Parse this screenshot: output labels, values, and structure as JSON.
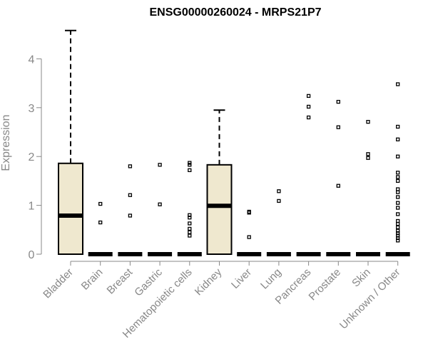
{
  "chart_data": {
    "type": "boxplot",
    "title": "ENSG00000260024 - MRPS21P7",
    "ylabel": "Expression",
    "xlabel": "",
    "ylim": [
      0,
      4.6
    ],
    "yticks": [
      0,
      1,
      2,
      3,
      4
    ],
    "grid": false,
    "box_color": "#efe8cf",
    "categories": [
      "Bladder",
      "Brain",
      "Breast",
      "Gastric",
      "Hematopoietic cells",
      "Kidney",
      "Liver",
      "Lung",
      "Pancreas",
      "Prostate",
      "Skin",
      "Unknown / Other"
    ],
    "boxes": [
      {
        "q1": 0,
        "median": 0.79,
        "q3": 1.86,
        "whisker_low": 0,
        "whisker_high": 4.58,
        "outliers": []
      },
      {
        "q1": 0,
        "median": 0,
        "q3": 0,
        "whisker_low": 0,
        "whisker_high": 0,
        "outliers": [
          0.65,
          1.03
        ]
      },
      {
        "q1": 0,
        "median": 0,
        "q3": 0,
        "whisker_low": 0,
        "whisker_high": 0,
        "outliers": [
          0.79,
          1.21,
          1.8
        ]
      },
      {
        "q1": 0,
        "median": 0,
        "q3": 0,
        "whisker_low": 0,
        "whisker_high": 0,
        "outliers": [
          1.02,
          1.83
        ]
      },
      {
        "q1": 0,
        "median": 0,
        "q3": 0,
        "whisker_low": 0,
        "whisker_high": 0,
        "outliers": [
          0.38,
          0.45,
          0.52,
          0.63,
          0.75,
          0.8,
          1.72,
          1.83,
          1.87
        ]
      },
      {
        "q1": 0,
        "median": 0.99,
        "q3": 1.83,
        "whisker_low": 0,
        "whisker_high": 2.95,
        "outliers": []
      },
      {
        "q1": 0,
        "median": 0,
        "q3": 0,
        "whisker_low": 0,
        "whisker_high": 0,
        "outliers": [
          0.35,
          0.85,
          0.87
        ]
      },
      {
        "q1": 0,
        "median": 0,
        "q3": 0,
        "whisker_low": 0,
        "whisker_high": 0,
        "outliers": [
          1.09,
          1.29
        ]
      },
      {
        "q1": 0,
        "median": 0,
        "q3": 0,
        "whisker_low": 0,
        "whisker_high": 0,
        "outliers": [
          2.8,
          3.02,
          3.24
        ]
      },
      {
        "q1": 0,
        "median": 0,
        "q3": 0,
        "whisker_low": 0,
        "whisker_high": 0,
        "outliers": [
          1.4,
          2.6,
          3.12
        ]
      },
      {
        "q1": 0,
        "median": 0,
        "q3": 0,
        "whisker_low": 0,
        "whisker_high": 0,
        "outliers": [
          1.97,
          2.05,
          2.71
        ]
      },
      {
        "q1": 0,
        "median": 0,
        "q3": 0,
        "whisker_low": 0,
        "whisker_high": 0,
        "outliers": [
          0.28,
          0.33,
          0.38,
          0.43,
          0.48,
          0.55,
          0.62,
          0.68,
          0.82,
          0.95,
          1.05,
          1.17,
          1.27,
          1.33,
          1.5,
          1.58,
          1.67,
          2.0,
          2.35,
          2.61,
          3.48
        ]
      }
    ]
  }
}
